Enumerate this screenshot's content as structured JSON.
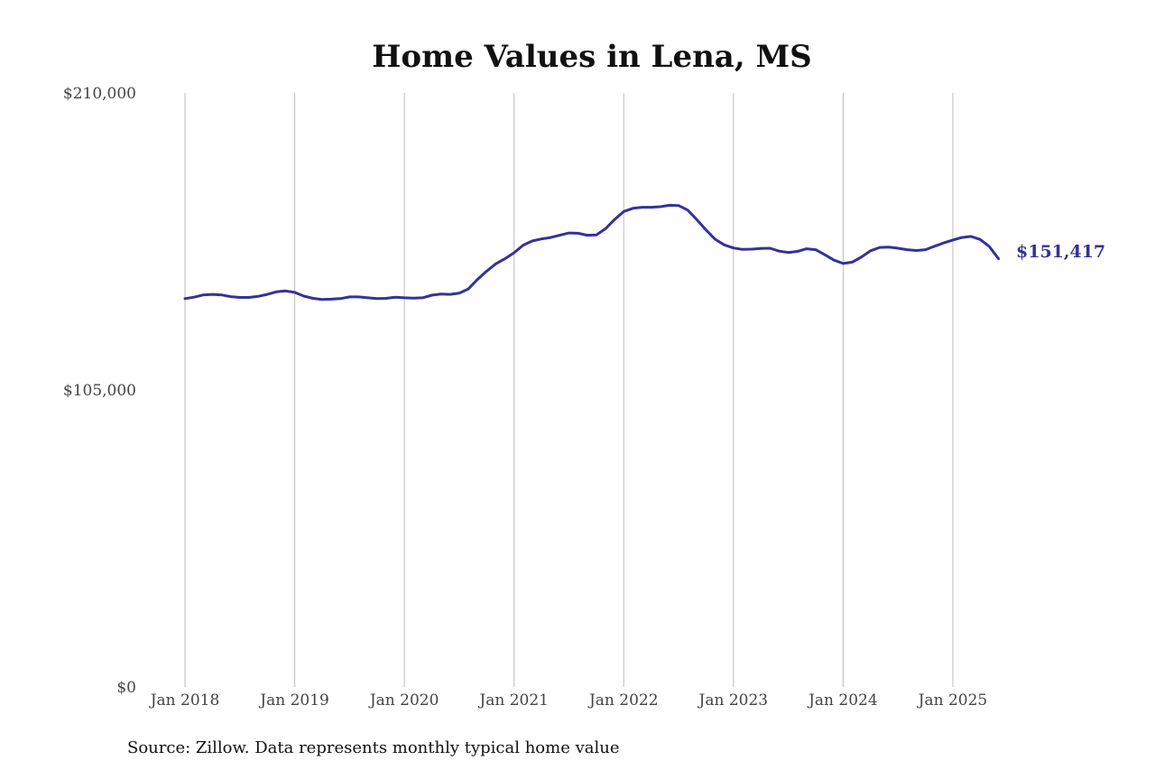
{
  "chart_data": {
    "type": "line",
    "title": "Home Values in Lena, MS",
    "source": "Source: Zillow. Data represents monthly typical home value",
    "end_label": "$151,417",
    "line_color": "#35319a",
    "grid_color": "#bdbdbd",
    "ylim": [
      0,
      210000
    ],
    "y_ticks": [
      {
        "value": 0,
        "label": "$0"
      },
      {
        "value": 105000,
        "label": "$105,000"
      },
      {
        "value": 210000,
        "label": "$210,000"
      }
    ],
    "x_ticks": [
      {
        "value": 2018.0,
        "label": "Jan 2018"
      },
      {
        "value": 2019.0,
        "label": "Jan 2019"
      },
      {
        "value": 2020.0,
        "label": "Jan 2020"
      },
      {
        "value": 2021.0,
        "label": "Jan 2021"
      },
      {
        "value": 2022.0,
        "label": "Jan 2022"
      },
      {
        "value": 2023.0,
        "label": "Jan 2023"
      },
      {
        "value": 2024.0,
        "label": "Jan 2024"
      },
      {
        "value": 2025.0,
        "label": "Jan 2025"
      }
    ],
    "xlim": [
      2018.0,
      2025.42
    ],
    "grid": "vertical",
    "series": [
      {
        "points": [
          [
            2018.0,
            137300
          ],
          [
            2018.083,
            137800
          ],
          [
            2018.167,
            138600
          ],
          [
            2018.25,
            138800
          ],
          [
            2018.333,
            138600
          ],
          [
            2018.417,
            138000
          ],
          [
            2018.5,
            137700
          ],
          [
            2018.583,
            137700
          ],
          [
            2018.667,
            138100
          ],
          [
            2018.75,
            138800
          ],
          [
            2018.833,
            139700
          ],
          [
            2018.917,
            140000
          ],
          [
            2019.0,
            139500
          ],
          [
            2019.083,
            138200
          ],
          [
            2019.167,
            137400
          ],
          [
            2019.25,
            137000
          ],
          [
            2019.333,
            137100
          ],
          [
            2019.417,
            137300
          ],
          [
            2019.5,
            137900
          ],
          [
            2019.583,
            137900
          ],
          [
            2019.667,
            137600
          ],
          [
            2019.75,
            137300
          ],
          [
            2019.833,
            137400
          ],
          [
            2019.917,
            137800
          ],
          [
            2020.0,
            137600
          ],
          [
            2020.083,
            137500
          ],
          [
            2020.167,
            137600
          ],
          [
            2020.25,
            138500
          ],
          [
            2020.333,
            138900
          ],
          [
            2020.417,
            138800
          ],
          [
            2020.5,
            139200
          ],
          [
            2020.583,
            140700
          ],
          [
            2020.667,
            144100
          ],
          [
            2020.75,
            147000
          ],
          [
            2020.833,
            149600
          ],
          [
            2020.917,
            151400
          ],
          [
            2021.0,
            153500
          ],
          [
            2021.083,
            156200
          ],
          [
            2021.167,
            157700
          ],
          [
            2021.25,
            158400
          ],
          [
            2021.333,
            158900
          ],
          [
            2021.417,
            159700
          ],
          [
            2021.5,
            160500
          ],
          [
            2021.583,
            160400
          ],
          [
            2021.667,
            159700
          ],
          [
            2021.75,
            159800
          ],
          [
            2021.833,
            162000
          ],
          [
            2021.917,
            165300
          ],
          [
            2022.0,
            168100
          ],
          [
            2022.083,
            169200
          ],
          [
            2022.167,
            169600
          ],
          [
            2022.25,
            169600
          ],
          [
            2022.333,
            169800
          ],
          [
            2022.417,
            170300
          ],
          [
            2022.5,
            170200
          ],
          [
            2022.583,
            168600
          ],
          [
            2022.667,
            165200
          ],
          [
            2022.75,
            161600
          ],
          [
            2022.833,
            158300
          ],
          [
            2022.917,
            156300
          ],
          [
            2023.0,
            155200
          ],
          [
            2023.083,
            154700
          ],
          [
            2023.167,
            154800
          ],
          [
            2023.25,
            155000
          ],
          [
            2023.333,
            155100
          ],
          [
            2023.417,
            154100
          ],
          [
            2023.5,
            153600
          ],
          [
            2023.583,
            154000
          ],
          [
            2023.667,
            154900
          ],
          [
            2023.75,
            154600
          ],
          [
            2023.833,
            152800
          ],
          [
            2023.917,
            150900
          ],
          [
            2024.0,
            149700
          ],
          [
            2024.083,
            150200
          ],
          [
            2024.167,
            152000
          ],
          [
            2024.25,
            154200
          ],
          [
            2024.333,
            155400
          ],
          [
            2024.417,
            155500
          ],
          [
            2024.5,
            155100
          ],
          [
            2024.583,
            154600
          ],
          [
            2024.667,
            154300
          ],
          [
            2024.75,
            154600
          ],
          [
            2024.833,
            155800
          ],
          [
            2024.917,
            157000
          ],
          [
            2025.0,
            158000
          ],
          [
            2025.083,
            158900
          ],
          [
            2025.167,
            159300
          ],
          [
            2025.25,
            158200
          ],
          [
            2025.333,
            155700
          ],
          [
            2025.417,
            151417
          ]
        ]
      }
    ]
  }
}
